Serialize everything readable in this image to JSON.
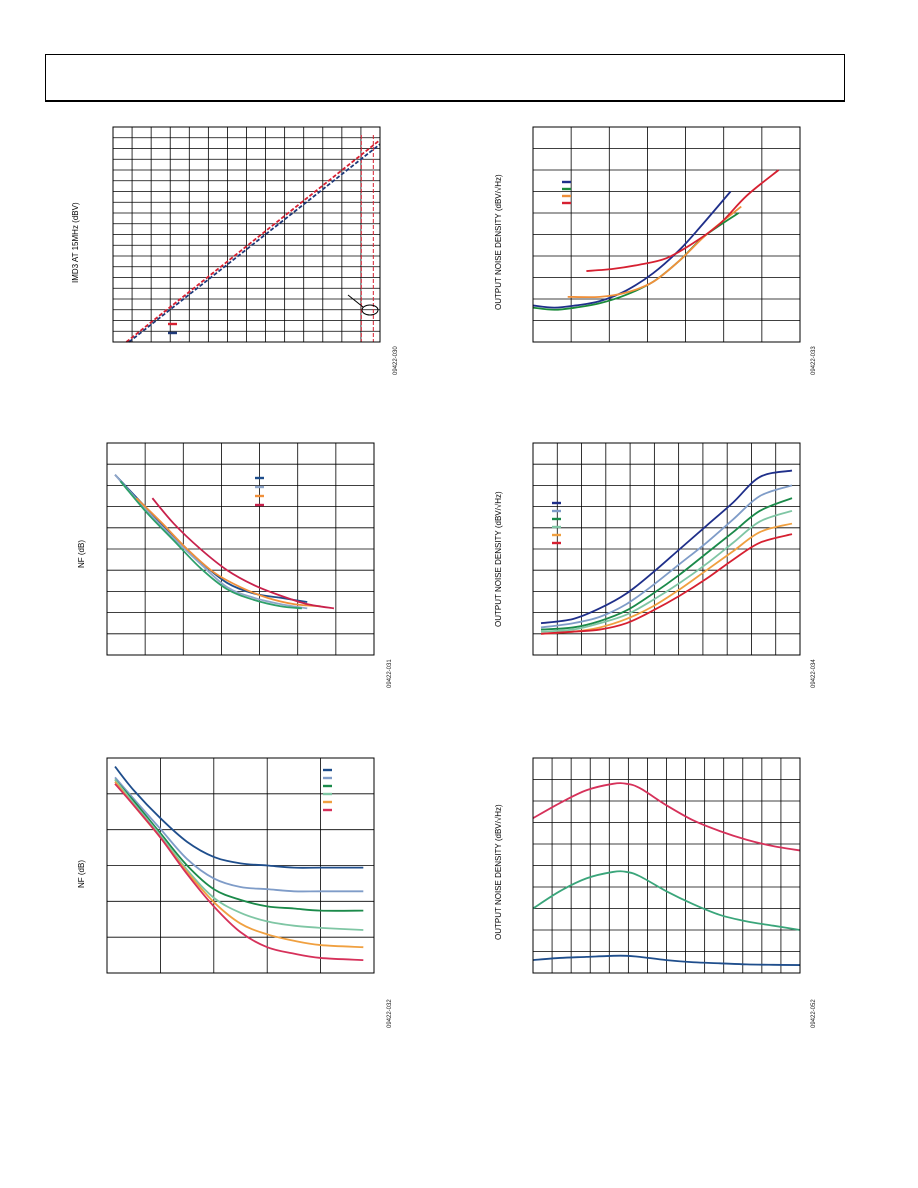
{
  "page": {},
  "chart_data": [
    {
      "id": "c1",
      "type": "line",
      "ylabel": "IMD3 AT 15MHz (dBV)",
      "figure_id": "09422-030",
      "grid": true,
      "xlim": [
        0,
        10
      ],
      "ylim": [
        0,
        10
      ],
      "series": [
        {
          "color": "#d62031",
          "dash": "4,2",
          "x": [
            0.5,
            10
          ],
          "y": [
            0,
            9.4
          ]
        },
        {
          "color": "#1f3a7a",
          "dash": "4,2",
          "x": [
            0.6,
            10
          ],
          "y": [
            0,
            9.2
          ]
        }
      ],
      "vlines": [
        {
          "color": "#d62031",
          "dash": "4,2",
          "x": 9.3
        },
        {
          "color": "#d62031",
          "dash": "4,2",
          "x": 9.75
        }
      ],
      "legend": {
        "colors": [
          "#d62031",
          "#1f3a7a"
        ]
      }
    },
    {
      "id": "c2",
      "type": "line",
      "ylabel": "OUTPUT NOISE DENSITY (dBV/√Hz)",
      "figure_id": "09422-033",
      "grid": true,
      "xlim": [
        0,
        10
      ],
      "ylim": [
        0,
        10
      ],
      "series": [
        {
          "color": "#1f2f8a",
          "x": [
            0,
            0.8,
            1.6,
            2.5,
            3.5,
            4.5,
            5.5,
            6.3,
            7.4
          ],
          "y": [
            1.7,
            1.6,
            1.7,
            1.9,
            2.4,
            3.2,
            4.3,
            5.4,
            7.0
          ]
        },
        {
          "color": "#1b8a3a",
          "x": [
            0,
            0.8,
            1.6,
            2.5,
            3.5,
            4.5,
            5.5,
            6.4,
            7.7
          ],
          "y": [
            1.6,
            1.5,
            1.6,
            1.8,
            2.2,
            2.8,
            3.8,
            4.9,
            6.0
          ]
        },
        {
          "color": "#f0903a",
          "x": [
            1.3,
            2.5,
            3.5,
            4.5,
            5.5,
            6.5,
            7.8
          ],
          "y": [
            2.1,
            2.1,
            2.3,
            2.8,
            3.8,
            5.0,
            6.3
          ]
        },
        {
          "color": "#d62031",
          "x": [
            2.0,
            3.0,
            4.0,
            5.0,
            6.0,
            7.0,
            8.0,
            9.2
          ],
          "y": [
            3.3,
            3.4,
            3.6,
            3.9,
            4.6,
            5.5,
            6.8,
            8.0
          ]
        }
      ],
      "legend": {
        "colors": [
          "#1f2f8a",
          "#1b8a3a",
          "#f0903a",
          "#d62031"
        ]
      }
    },
    {
      "id": "c3",
      "type": "line",
      "ylabel": "NF (dB)",
      "figure_id": "09422-031",
      "grid": true,
      "xlim": [
        0,
        10
      ],
      "ylim": [
        0,
        10
      ],
      "series": [
        {
          "color": "#1f4e8c",
          "x": [
            0.3,
            1.5,
            2.5,
            3.5,
            4.5,
            5.5,
            6.5,
            7.5
          ],
          "y": [
            8.5,
            6.9,
            5.6,
            4.4,
            3.4,
            2.9,
            2.7,
            2.5
          ]
        },
        {
          "color": "#8fa6c9",
          "x": [
            0.3,
            1.5,
            2.5,
            3.5,
            4.5,
            5.5,
            6.5,
            7.5
          ],
          "y": [
            8.5,
            6.8,
            5.5,
            4.3,
            3.2,
            2.7,
            2.4,
            2.2
          ]
        },
        {
          "color": "#2ea06a",
          "x": [
            0.5,
            1.5,
            2.5,
            3.5,
            4.5,
            5.5,
            6.5,
            7.3
          ],
          "y": [
            8.2,
            6.7,
            5.4,
            4.1,
            3.1,
            2.6,
            2.3,
            2.2
          ]
        },
        {
          "color": "#f0903a",
          "x": [
            1.1,
            2.0,
            3.0,
            4.0,
            5.0,
            6.0,
            7.0,
            8.0
          ],
          "y": [
            7.4,
            6.3,
            5.0,
            3.9,
            3.2,
            2.7,
            2.4,
            2.3
          ]
        },
        {
          "color": "#c8214c",
          "x": [
            1.7,
            2.5,
            3.5,
            4.5,
            5.5,
            6.5,
            7.5,
            8.5
          ],
          "y": [
            7.4,
            6.2,
            5.0,
            4.0,
            3.3,
            2.8,
            2.4,
            2.2
          ]
        }
      ],
      "legend": {
        "colors": [
          "#1f4e8c",
          "#8fa6c9",
          "#f0903a",
          "#c8214c"
        ]
      }
    },
    {
      "id": "c4",
      "type": "line",
      "ylabel": "OUTPUT NOISE DENSITY (dBV/√Hz)",
      "figure_id": "09422-034",
      "grid": true,
      "xlim": [
        0,
        10
      ],
      "ylim": [
        0,
        10
      ],
      "series": [
        {
          "color": "#1f2f8a",
          "x": [
            0.3,
            1.5,
            2.5,
            3.5,
            4.5,
            5.5,
            6.5,
            7.5,
            8.5,
            9.7
          ],
          "y": [
            1.5,
            1.7,
            2.2,
            2.9,
            3.9,
            5.0,
            6.1,
            7.2,
            8.4,
            8.7
          ]
        },
        {
          "color": "#7f9cc8",
          "x": [
            0.3,
            1.5,
            2.5,
            3.5,
            4.5,
            5.5,
            6.5,
            7.5,
            8.5,
            9.7
          ],
          "y": [
            1.3,
            1.5,
            1.8,
            2.4,
            3.3,
            4.3,
            5.3,
            6.4,
            7.5,
            8.0
          ]
        },
        {
          "color": "#1b8a4a",
          "x": [
            0.3,
            1.5,
            2.5,
            3.5,
            4.5,
            5.5,
            6.5,
            7.5,
            8.5,
            9.7
          ],
          "y": [
            1.2,
            1.3,
            1.6,
            2.1,
            2.9,
            3.8,
            4.8,
            5.8,
            6.8,
            7.4
          ]
        },
        {
          "color": "#7fc6a4",
          "x": [
            0.3,
            1.5,
            2.5,
            3.5,
            4.5,
            5.5,
            6.5,
            7.5,
            8.5,
            9.7
          ],
          "y": [
            1.1,
            1.2,
            1.5,
            1.9,
            2.6,
            3.4,
            4.3,
            5.3,
            6.3,
            6.8
          ]
        },
        {
          "color": "#f0a040",
          "x": [
            0.3,
            1.5,
            2.5,
            3.5,
            4.5,
            5.5,
            6.5,
            7.5,
            8.5,
            9.7
          ],
          "y": [
            1.0,
            1.1,
            1.3,
            1.7,
            2.3,
            3.1,
            4.0,
            4.9,
            5.8,
            6.2
          ]
        },
        {
          "color": "#d62031",
          "x": [
            0.3,
            1.5,
            2.5,
            3.5,
            4.5,
            5.5,
            6.5,
            7.5,
            8.5,
            9.7
          ],
          "y": [
            1.0,
            1.1,
            1.2,
            1.5,
            2.1,
            2.8,
            3.6,
            4.5,
            5.3,
            5.7
          ]
        }
      ],
      "legend": {
        "colors": [
          "#1f2f8a",
          "#7f9cc8",
          "#1b8a4a",
          "#7fc6a4",
          "#f0a040",
          "#d62031"
        ]
      }
    },
    {
      "id": "c5",
      "type": "line",
      "ylabel": "NF (dB)",
      "figure_id": "09422-032",
      "grid": true,
      "xlim": [
        0,
        10
      ],
      "ylim": [
        0,
        10
      ],
      "series": [
        {
          "color": "#1f4e8c",
          "x": [
            0.3,
            1.0,
            2.0,
            3.0,
            4.0,
            5.0,
            6.0,
            7.0,
            8.0,
            9.6
          ],
          "y": [
            9.6,
            8.5,
            7.2,
            6.1,
            5.4,
            5.1,
            5.0,
            4.9,
            4.9,
            4.9
          ]
        },
        {
          "color": "#7f9cc8",
          "x": [
            0.3,
            1.0,
            2.0,
            3.0,
            4.0,
            5.0,
            6.0,
            7.0,
            8.0,
            9.6
          ],
          "y": [
            9.1,
            8.1,
            6.7,
            5.3,
            4.4,
            4.0,
            3.9,
            3.8,
            3.8,
            3.8
          ]
        },
        {
          "color": "#1b8a4a",
          "x": [
            0.3,
            1.0,
            2.0,
            3.0,
            4.0,
            5.0,
            6.0,
            7.0,
            8.0,
            9.6
          ],
          "y": [
            9.0,
            8.0,
            6.5,
            5.0,
            3.9,
            3.4,
            3.1,
            3.0,
            2.9,
            2.9
          ]
        },
        {
          "color": "#7fc6a4",
          "x": [
            0.3,
            1.0,
            2.0,
            3.0,
            4.0,
            5.0,
            6.0,
            7.0,
            8.0,
            9.6
          ],
          "y": [
            9.0,
            7.9,
            6.4,
            4.8,
            3.5,
            2.8,
            2.4,
            2.2,
            2.1,
            2.0
          ]
        },
        {
          "color": "#f0a040",
          "x": [
            0.3,
            1.0,
            2.0,
            3.0,
            4.0,
            5.0,
            6.0,
            7.0,
            8.0,
            9.6
          ],
          "y": [
            8.9,
            7.8,
            6.3,
            4.7,
            3.3,
            2.3,
            1.8,
            1.5,
            1.3,
            1.2
          ]
        },
        {
          "color": "#d6315a",
          "x": [
            0.3,
            1.0,
            2.0,
            3.0,
            4.0,
            5.0,
            6.0,
            7.0,
            8.0,
            9.6
          ],
          "y": [
            8.8,
            7.8,
            6.3,
            4.6,
            3.1,
            1.9,
            1.2,
            0.9,
            0.7,
            0.6
          ]
        }
      ],
      "legend": {
        "colors": [
          "#1f4e8c",
          "#7f9cc8",
          "#1b8a4a",
          "#7fc6a4",
          "#f0a040",
          "#d6315a"
        ]
      }
    },
    {
      "id": "c6",
      "type": "line",
      "ylabel": "OUTPUT NOISE DENSITY (dBV/√Hz)",
      "figure_id": "09422-052",
      "grid": true,
      "xlim": [
        0,
        10
      ],
      "ylim": [
        0,
        10
      ],
      "series": [
        {
          "color": "#d6315a",
          "x": [
            0,
            1.0,
            2.0,
            3.0,
            3.5,
            4.0,
            5.0,
            6.0,
            7.0,
            8.0,
            9.0,
            10.0
          ],
          "y": [
            7.2,
            7.9,
            8.5,
            8.8,
            8.8,
            8.6,
            7.8,
            7.1,
            6.6,
            6.2,
            5.9,
            5.7
          ]
        },
        {
          "color": "#3aa57a",
          "x": [
            0,
            1.0,
            2.0,
            3.0,
            3.5,
            4.0,
            5.0,
            6.0,
            7.0,
            8.0,
            9.0,
            10.0
          ],
          "y": [
            3.0,
            3.8,
            4.4,
            4.7,
            4.7,
            4.5,
            3.8,
            3.2,
            2.7,
            2.4,
            2.2,
            2.0
          ]
        },
        {
          "color": "#1f4e8c",
          "x": [
            0,
            1.0,
            2.0,
            3.0,
            3.5,
            4.0,
            5.0,
            6.0,
            7.0,
            8.0,
            9.0,
            10.0
          ],
          "y": [
            0.6,
            0.7,
            0.75,
            0.8,
            0.8,
            0.75,
            0.6,
            0.5,
            0.45,
            0.4,
            0.38,
            0.37
          ]
        }
      ],
      "legend": {
        "colors": []
      }
    }
  ]
}
